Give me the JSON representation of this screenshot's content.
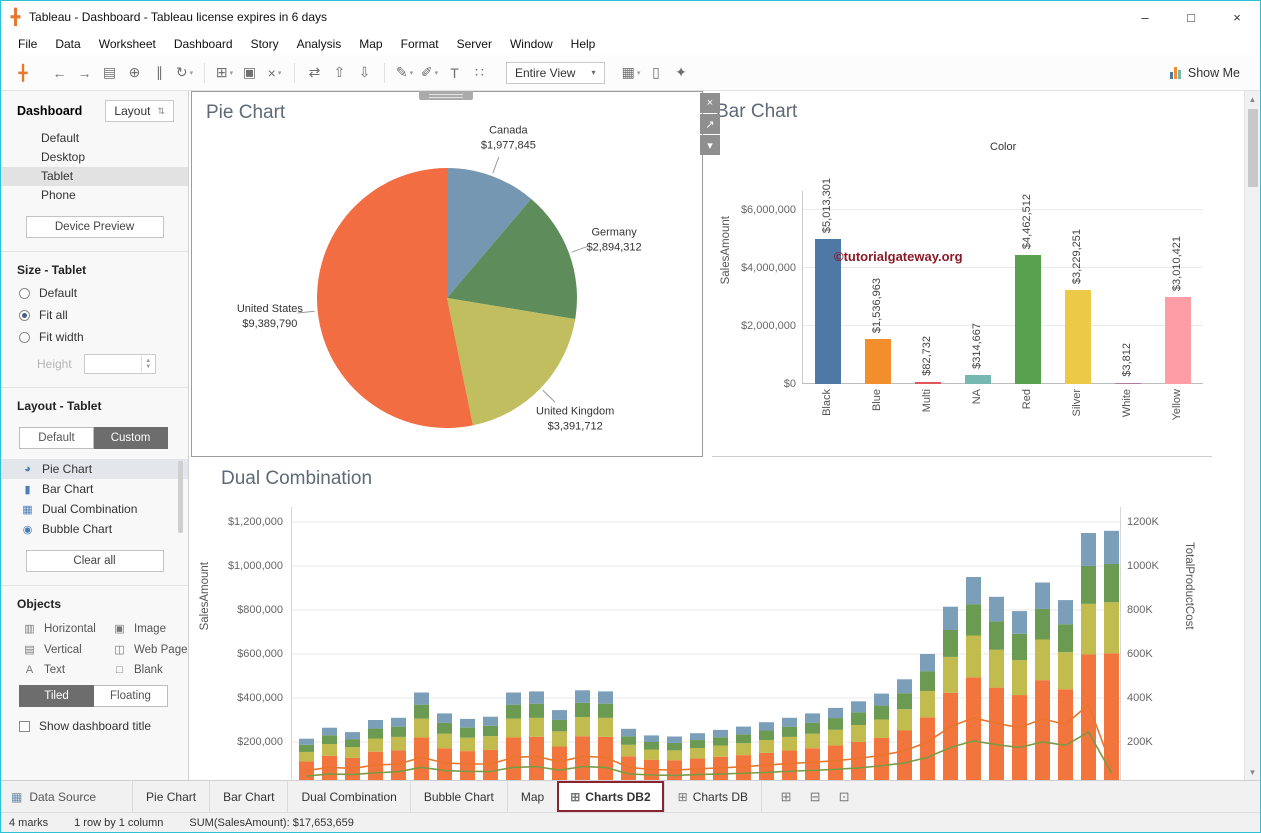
{
  "window": {
    "title": "Tableau - Dashboard - Tableau license expires in 6 days",
    "controls": {
      "minimize": "–",
      "maximize": "□",
      "close": "×"
    }
  },
  "menu_bar": {
    "items": [
      "File",
      "Data",
      "Worksheet",
      "Dashboard",
      "Story",
      "Analysis",
      "Map",
      "Format",
      "Server",
      "Window",
      "Help"
    ]
  },
  "toolbar": {
    "logo_glyph": "╋",
    "group1": [
      {
        "name": "undo-button",
        "glyph": "←"
      },
      {
        "name": "redo-button",
        "glyph": "→"
      },
      {
        "name": "save-button",
        "glyph": "▤"
      },
      {
        "name": "new-data-source-button",
        "glyph": "⊕"
      },
      {
        "name": "pause-updates-button",
        "glyph": "∥"
      },
      {
        "name": "run-updates-button",
        "glyph": "↻",
        "dropdown": true
      }
    ],
    "group2": [
      {
        "name": "new-worksheet-button",
        "glyph": "⊞",
        "dropdown": true
      },
      {
        "name": "duplicate-sheet-button",
        "glyph": "▣"
      },
      {
        "name": "clear-sheet-button",
        "glyph": "×",
        "dropdown": true
      }
    ],
    "group3": [
      {
        "name": "swap-axes-button",
        "glyph": "⇄"
      },
      {
        "name": "sort-ascending-button",
        "glyph": "⇧"
      },
      {
        "name": "sort-descending-button",
        "glyph": "⇩"
      }
    ],
    "group4": [
      {
        "name": "highlight-button",
        "glyph": "✎",
        "dropdown": true
      },
      {
        "name": "format-links-button",
        "glyph": "✐",
        "dropdown": true
      },
      {
        "name": "show-mark-labels-button",
        "glyph": "T"
      },
      {
        "name": "fix-axes-button",
        "glyph": "∷"
      }
    ],
    "view_select_value": "Entire View",
    "group_right": [
      {
        "name": "show-hide-cards-button",
        "glyph": "▦",
        "dropdown": true
      },
      {
        "name": "presentation-mode-button",
        "glyph": "▯"
      },
      {
        "name": "share-workbook-button",
        "glyph": "✦"
      }
    ],
    "show_me_label": "Show Me"
  },
  "sidebar": {
    "tabs": [
      "Dashboard",
      "Layout"
    ],
    "layout_box_icon": "⇅",
    "devices": [
      {
        "label": "Default"
      },
      {
        "label": "Desktop"
      },
      {
        "label": "Tablet",
        "selected": true
      },
      {
        "label": "Phone"
      }
    ],
    "device_preview_label": "Device Preview",
    "size": {
      "title": "Size - Tablet",
      "options": [
        {
          "label": "Default"
        },
        {
          "label": "Fit all",
          "selected": true
        },
        {
          "label": "Fit width"
        }
      ],
      "height_label": "Height",
      "height_value": ""
    },
    "layout": {
      "title": "Layout - Tablet",
      "mode_buttons": [
        {
          "label": "Default"
        },
        {
          "label": "Custom",
          "active": true
        }
      ],
      "items": [
        {
          "label": "Pie Chart",
          "icon": "◕",
          "icon_name": "pie-chart-icon",
          "selected": true
        },
        {
          "label": "Bar Chart",
          "icon": "▮",
          "icon_name": "bar-chart-icon"
        },
        {
          "label": "Dual Combination",
          "icon": "▦",
          "icon_name": "dual-combination-icon"
        },
        {
          "label": "Bubble Chart",
          "icon": "◉",
          "icon_name": "bubble-chart-icon"
        }
      ],
      "clear_all_label": "Clear all"
    },
    "objects": {
      "title": "Objects",
      "items": [
        {
          "label": "Horizontal",
          "icon": "▥",
          "icon_name": "horizontal-object-icon"
        },
        {
          "label": "Image",
          "icon": "▣",
          "icon_name": "image-object-icon"
        },
        {
          "label": "Vertical",
          "icon": "▤",
          "icon_name": "vertical-object-icon"
        },
        {
          "label": "Web Page",
          "icon": "◫",
          "icon_name": "web-page-object-icon"
        },
        {
          "label": "Text",
          "icon": "A",
          "icon_name": "text-object-icon"
        },
        {
          "label": "Blank",
          "icon": "□",
          "icon_name": "blank-object-icon"
        }
      ],
      "mode_buttons": [
        {
          "label": "Tiled",
          "active": true
        },
        {
          "label": "Floating"
        }
      ],
      "show_title_label": "Show dashboard title"
    }
  },
  "zone_controls": {
    "close": "×",
    "goto": "↗",
    "menu": "▾"
  },
  "charts": {
    "pie": {
      "type": "pie",
      "title": "Pie Chart",
      "slices": [
        {
          "label": "Canada",
          "value": 1977845,
          "value_label": "$1,977,845",
          "color": "#7697B2"
        },
        {
          "label": "Germany",
          "value": 2894312,
          "value_label": "$2,894,312",
          "color": "#5E8D5B"
        },
        {
          "label": "United Kingdom",
          "value": 3391712,
          "value_label": "$3,391,712",
          "color": "#C1BE5F"
        },
        {
          "label": "United States",
          "value": 9389790,
          "value_label": "$9,389,790",
          "color": "#F26D41"
        }
      ]
    },
    "bar": {
      "type": "bar",
      "title": "Bar Chart",
      "legend_title": "Color",
      "ylabel": "SalesAmount",
      "watermark": "©tutorialgateway.org",
      "ylim": [
        0,
        6000000
      ],
      "yticks": [
        "$0",
        "$2,000,000",
        "$4,000,000",
        "$6,000,000"
      ],
      "ytick_values": [
        0,
        2000000,
        4000000,
        6000000
      ],
      "categories": [
        "Black",
        "Blue",
        "Multi",
        "NA",
        "Red",
        "Silver",
        "White",
        "Yellow"
      ],
      "values": [
        5013301,
        1536963,
        82732,
        314667,
        4462512,
        3229251,
        3812,
        3010421
      ],
      "value_labels": [
        "$5,013,301",
        "$1,536,963",
        "$82,732",
        "$314,667",
        "$4,462,512",
        "$3,229,251",
        "$3,812",
        "$3,010,421"
      ],
      "colors": [
        "#4E79A7",
        "#F28E2B",
        "#E15759",
        "#76B7B2",
        "#59A14F",
        "#EDC948",
        "#B07AA1",
        "#FF9DA7"
      ]
    },
    "dual": {
      "type": "stacked-bar+line",
      "title": "Dual Combination",
      "ylabel_left": "SalesAmount",
      "ylabel_right": "TotalProductCost",
      "ylim": [
        0,
        1200000
      ],
      "yticks_left": [
        "$200,000",
        "$400,000",
        "$600,000",
        "$800,000",
        "$1,000,000",
        "$1,200,000"
      ],
      "yticks_right": [
        "200K",
        "400K",
        "600K",
        "800K",
        "1000K",
        "1200K"
      ],
      "ytick_values_k": [
        200,
        400,
        600,
        800,
        1000,
        1200
      ],
      "bar_totals_k": [
        215,
        265,
        245,
        300,
        310,
        425,
        330,
        305,
        315,
        425,
        430,
        345,
        435,
        430,
        260,
        230,
        225,
        240,
        255,
        270,
        290,
        310,
        330,
        355,
        385,
        420,
        485,
        600,
        815,
        950,
        860,
        795,
        925,
        845,
        1150,
        1160
      ],
      "stack_fractions": [
        0.52,
        0.2,
        0.15,
        0.13
      ],
      "stack_colors": [
        "#F2753D",
        "#C2BC4E",
        "#6B9A52",
        "#7B9EB9"
      ],
      "line1_color": "#E8762D",
      "line1_k": [
        70,
        85,
        80,
        95,
        100,
        130,
        105,
        100,
        100,
        130,
        135,
        110,
        135,
        130,
        85,
        75,
        72,
        78,
        82,
        88,
        95,
        102,
        108,
        115,
        125,
        140,
        160,
        200,
        270,
        310,
        285,
        265,
        305,
        280,
        370,
        90
      ],
      "line2_color": "#7A9A44",
      "line2_k": [
        45,
        55,
        52,
        60,
        65,
        85,
        70,
        66,
        66,
        85,
        88,
        72,
        88,
        85,
        55,
        50,
        48,
        52,
        55,
        58,
        62,
        67,
        71,
        76,
        82,
        92,
        105,
        130,
        175,
        205,
        188,
        175,
        200,
        185,
        245,
        60
      ]
    }
  },
  "sheet_bar": {
    "data_source_label": "Data Source",
    "data_source_icon": "▦",
    "tabs": [
      {
        "label": "Pie Chart"
      },
      {
        "label": "Bar Chart"
      },
      {
        "label": "Dual Combination"
      },
      {
        "label": "Bubble Chart"
      },
      {
        "label": "Map"
      },
      {
        "label": "Charts DB2",
        "active": true,
        "icon_glyph": "⊞"
      },
      {
        "label": "Charts DB",
        "icon_glyph": "⊞"
      }
    ],
    "new_buttons": [
      {
        "name": "new-worksheet-tab-button",
        "glyph": "⊞"
      },
      {
        "name": "new-dashboard-tab-button",
        "glyph": "⊟"
      },
      {
        "name": "new-story-tab-button",
        "glyph": "⊡"
      }
    ]
  },
  "status_bar": {
    "marks": "4 marks",
    "size": "1 row by 1 column",
    "sum": "SUM(SalesAmount): $17,653,659"
  }
}
